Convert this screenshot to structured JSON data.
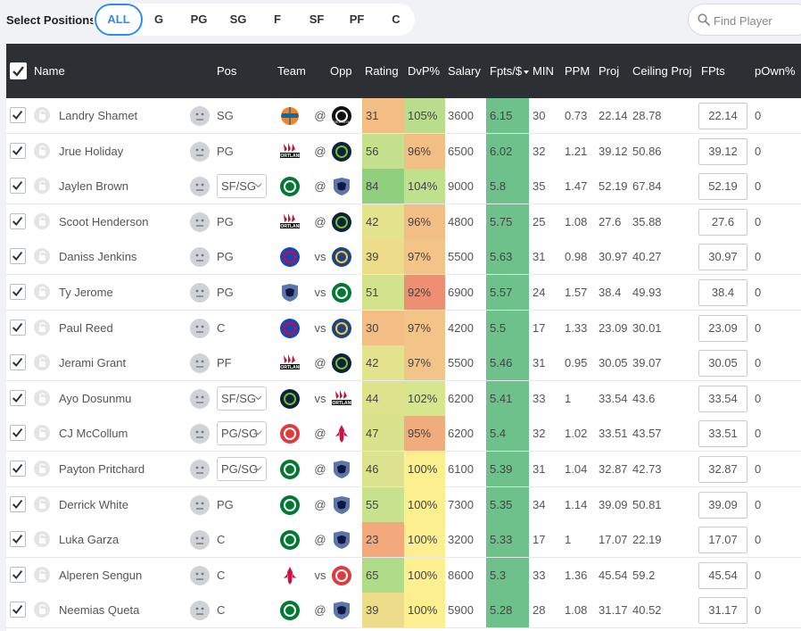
{
  "filters": {
    "label": "Select Positions",
    "buttons": [
      "ALL",
      "G",
      "PG",
      "SG",
      "F",
      "SF",
      "PF",
      "C"
    ],
    "active": "ALL"
  },
  "search": {
    "placeholder": "Find Player"
  },
  "columns": {
    "name": "Name",
    "pos": "Pos",
    "team": "Team",
    "opp": "Opp",
    "rating": "Rating",
    "dvp": "DvP%",
    "salary": "Salary",
    "fpts_per": "Fpts/$",
    "min": "MIN",
    "ppm": "PPM",
    "proj": "Proj",
    "ceiling": "Ceiling Proj",
    "fpts": "FPts",
    "pown": "pOwn%"
  },
  "colors": {
    "header_bg": "#2c3034",
    "accent": "#2d8cf0",
    "fpts_per_bg": "#6ec18a",
    "ppg_red": "#ce1141",
    "ppg_black": "#111111"
  },
  "teams": {
    "NYK": {
      "icon": "knicks-logo-icon",
      "text": "",
      "bg": "#f58426",
      "fg": "#006bb6",
      "shape": "ball"
    },
    "BKN": {
      "icon": "nets-logo-icon",
      "text": "BROOKLYN",
      "bg": "#111111",
      "fg": "#ffffff",
      "shape": "circle"
    },
    "POR": {
      "icon": "trail-blazers-logo-icon",
      "text": "PORTLAND",
      "bg": "#ffffff",
      "fg": "#c8102e",
      "shape": "wordmark"
    },
    "MIN": {
      "icon": "timberwolves-logo-icon",
      "text": "",
      "bg": "#0c2340",
      "fg": "#78be20",
      "shape": "circle"
    },
    "BOS": {
      "icon": "celtics-logo-icon",
      "text": "",
      "bg": "#007a33",
      "fg": "#ffffff",
      "shape": "circle"
    },
    "MEM": {
      "icon": "grizzlies-logo-icon",
      "text": "",
      "bg": "#5d76a9",
      "fg": "#12173f",
      "shape": "shield"
    },
    "DET": {
      "icon": "pistons-logo-icon",
      "text": "",
      "bg": "#1d42ba",
      "fg": "#c8102e",
      "shape": "circle"
    },
    "GSW": {
      "icon": "warriors-logo-icon",
      "text": "",
      "bg": "#1d428a",
      "fg": "#ffc72c",
      "shape": "circle"
    },
    "ATL": {
      "icon": "hawks-logo-icon",
      "text": "",
      "bg": "#e03a3e",
      "fg": "#ffffff",
      "shape": "circle"
    },
    "HOU": {
      "icon": "rockets-logo-icon",
      "text": "",
      "bg": "#ffffff",
      "fg": "#ce1141",
      "shape": "rocket"
    }
  },
  "players": [
    {
      "name": "Landry Shamet",
      "pos": "SG",
      "select": false,
      "team": "NYK",
      "loc": "@",
      "opp": "BKN",
      "rating": "31",
      "rating_color": "#f3bd86",
      "dvp": "105%",
      "dvp_color": "#b9dd8c",
      "salary": "3600",
      "fpts_per": "6.15",
      "min": "30",
      "ppm": "0.73",
      "proj": "22.14",
      "ceiling": "28.78",
      "fpts": "22.14",
      "pown": "0"
    },
    {
      "name": "Jrue Holiday",
      "pos": "PG",
      "select": false,
      "team": "POR",
      "loc": "@",
      "opp": "MIN",
      "rating": "56",
      "rating_color": "#c5e08e",
      "dvp": "96%",
      "dvp_color": "#f3bd86",
      "salary": "6500",
      "fpts_per": "6.02",
      "min": "32",
      "ppm": "1.21",
      "proj": "39.12",
      "ceiling": "50.86",
      "fpts": "39.12",
      "pown": "0"
    },
    {
      "name": "Jaylen Brown",
      "pos": "SF/SG",
      "select": true,
      "team": "BOS",
      "loc": "@",
      "opp": "MEM",
      "rating": "84",
      "rating_color": "#8fcf7e",
      "dvp": "104%",
      "dvp_color": "#bfe08d",
      "salary": "9000",
      "fpts_per": "5.8",
      "min": "35",
      "ppm": "1.47",
      "proj": "52.19",
      "ceiling": "67.84",
      "fpts": "52.19",
      "pown": "0"
    },
    {
      "name": "Scoot Henderson",
      "pos": "PG",
      "select": false,
      "team": "POR",
      "loc": "@",
      "opp": "MIN",
      "rating": "42",
      "rating_color": "#e4e38d",
      "dvp": "96%",
      "dvp_color": "#f3bd86",
      "salary": "4800",
      "fpts_per": "5.75",
      "min": "25",
      "ppm": "1.08",
      "proj": "27.6",
      "ceiling": "35.88",
      "fpts": "27.6",
      "pown": "0"
    },
    {
      "name": "Daniss Jenkins",
      "pos": "PG",
      "select": false,
      "team": "DET",
      "loc": "vs",
      "opp": "GSW",
      "rating": "39",
      "rating_color": "#eddc89",
      "dvp": "97%",
      "dvp_color": "#f3c488",
      "salary": "5500",
      "fpts_per": "5.63",
      "min": "31",
      "ppm": "0.98",
      "proj": "30.97",
      "ceiling": "40.27",
      "fpts": "30.97",
      "pown": "0"
    },
    {
      "name": "Ty Jerome",
      "pos": "PG",
      "select": false,
      "team": "MEM",
      "loc": "vs",
      "opp": "BOS",
      "rating": "51",
      "rating_color": "#d3e28d",
      "dvp": "92%",
      "dvp_color": "#ec8f73",
      "salary": "6900",
      "fpts_per": "5.57",
      "min": "24",
      "ppm": "1.57",
      "proj": "38.4",
      "ceiling": "49.93",
      "fpts": "38.4",
      "pown": "0"
    },
    {
      "name": "Paul Reed",
      "pos": "C",
      "select": false,
      "team": "DET",
      "loc": "vs",
      "opp": "GSW",
      "rating": "30",
      "rating_color": "#f3bd86",
      "dvp": "97%",
      "dvp_color": "#f3c488",
      "salary": "4200",
      "fpts_per": "5.5",
      "min": "17",
      "ppm": "1.33",
      "proj": "23.09",
      "ceiling": "30.01",
      "fpts": "23.09",
      "pown": "0"
    },
    {
      "name": "Jerami Grant",
      "pos": "PF",
      "select": false,
      "team": "POR",
      "loc": "@",
      "opp": "MIN",
      "rating": "42",
      "rating_color": "#e4e38d",
      "dvp": "97%",
      "dvp_color": "#f3c488",
      "salary": "5500",
      "fpts_per": "5.46",
      "min": "31",
      "ppm": "0.95",
      "proj": "30.05",
      "ceiling": "39.07",
      "fpts": "30.05",
      "pown": "0"
    },
    {
      "name": "Ayo Dosunmu",
      "pos": "SF/SG",
      "select": true,
      "team": "MIN",
      "loc": "vs",
      "opp": "POR",
      "rating": "44",
      "rating_color": "#dfe28d",
      "dvp": "102%",
      "dvp_color": "#d5e68d",
      "salary": "6200",
      "fpts_per": "5.41",
      "min": "33",
      "ppm": "1",
      "proj": "33.54",
      "ceiling": "43.6",
      "fpts": "33.54",
      "pown": "0"
    },
    {
      "name": "CJ McCollum",
      "pos": "PG/SG",
      "select": true,
      "team": "ATL",
      "loc": "@",
      "opp": "HOU",
      "rating": "47",
      "rating_color": "#dae28d",
      "dvp": "95%",
      "dvp_color": "#f1ac7e",
      "salary": "6200",
      "fpts_per": "5.4",
      "min": "32",
      "ppm": "1.02",
      "proj": "33.51",
      "ceiling": "43.57",
      "fpts": "33.51",
      "pown": "0"
    },
    {
      "name": "Payton Pritchard",
      "pos": "PG/SG",
      "select": true,
      "team": "BOS",
      "loc": "@",
      "opp": "MEM",
      "rating": "46",
      "rating_color": "#dce28d",
      "dvp": "100%",
      "dvp_color": "#fbef8f",
      "salary": "6100",
      "fpts_per": "5.39",
      "min": "31",
      "ppm": "1.04",
      "proj": "32.87",
      "ceiling": "42.73",
      "fpts": "32.87",
      "pown": "0"
    },
    {
      "name": "Derrick White",
      "pos": "PG",
      "select": false,
      "team": "BOS",
      "loc": "@",
      "opp": "MEM",
      "rating": "55",
      "rating_color": "#c7e18e",
      "dvp": "100%",
      "dvp_color": "#fbef8f",
      "salary": "7300",
      "fpts_per": "5.35",
      "min": "34",
      "ppm": "1.14",
      "proj": "39.09",
      "ceiling": "50.81",
      "fpts": "39.09",
      "pown": "0"
    },
    {
      "name": "Luka Garza",
      "pos": "C",
      "select": false,
      "team": "BOS",
      "loc": "@",
      "opp": "MEM",
      "rating": "23",
      "rating_color": "#f3a97c",
      "dvp": "100%",
      "dvp_color": "#fbef8f",
      "salary": "3200",
      "fpts_per": "5.33",
      "min": "17",
      "ppm": "1",
      "proj": "17.07",
      "ceiling": "22.19",
      "fpts": "17.07",
      "pown": "0"
    },
    {
      "name": "Alperen Sengun",
      "pos": "C",
      "select": false,
      "team": "HOU",
      "loc": "vs",
      "opp": "ATL",
      "rating": "65",
      "rating_color": "#b0db88",
      "dvp": "100%",
      "dvp_color": "#fbef8f",
      "salary": "8600",
      "fpts_per": "5.3",
      "min": "33",
      "ppm": "1.36",
      "proj": "45.54",
      "ceiling": "59.2",
      "fpts": "45.54",
      "pown": "0"
    },
    {
      "name": "Neemias Queta",
      "pos": "C",
      "select": false,
      "team": "BOS",
      "loc": "@",
      "opp": "MEM",
      "rating": "39",
      "rating_color": "#eddc89",
      "dvp": "100%",
      "dvp_color": "#fbef8f",
      "salary": "5900",
      "fpts_per": "5.28",
      "min": "28",
      "ppm": "1.08",
      "proj": "31.17",
      "ceiling": "40.52",
      "fpts": "31.17",
      "pown": "0"
    }
  ]
}
